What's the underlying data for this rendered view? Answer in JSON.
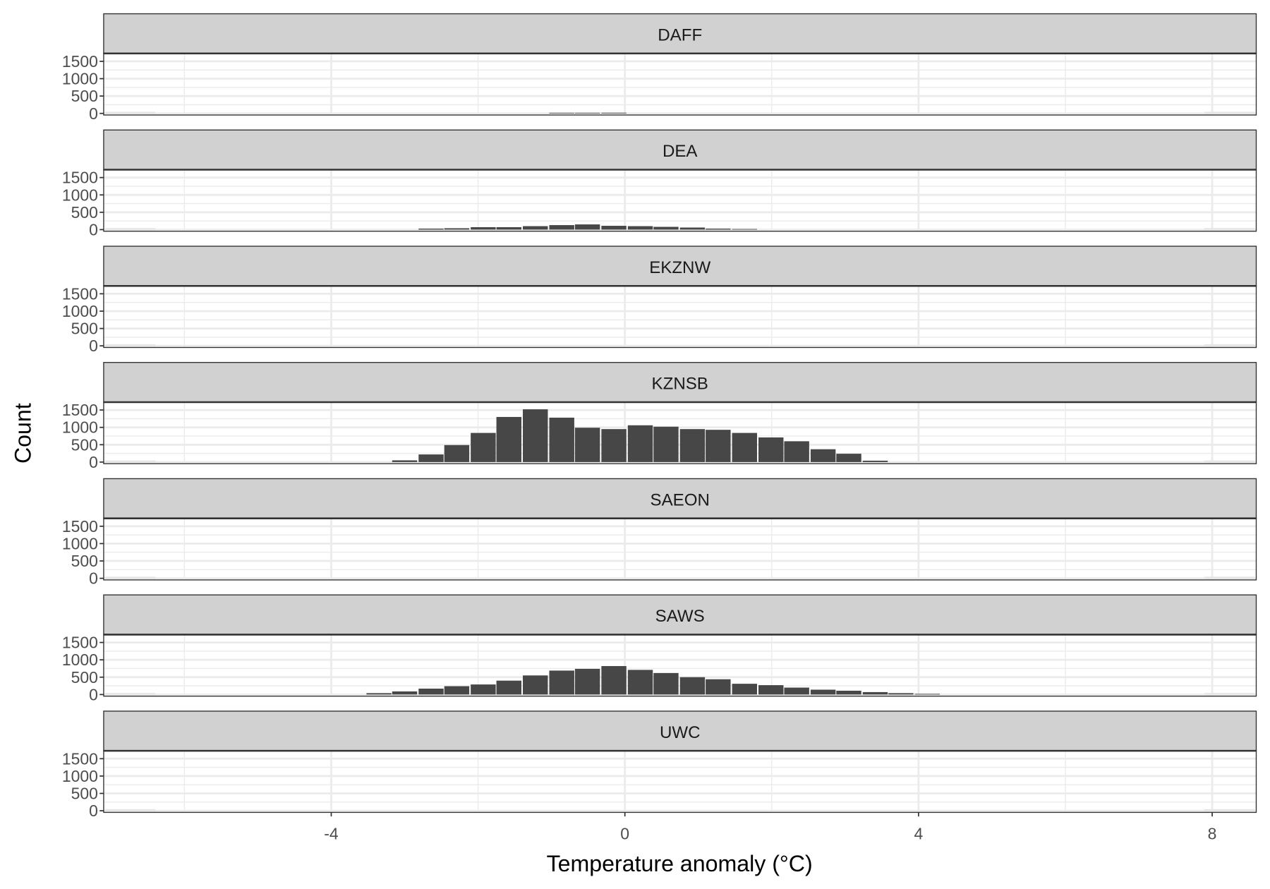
{
  "chart_data": {
    "type": "bar",
    "subtype": "faceted histogram",
    "xlabel": "Temperature anomaly (°C)",
    "ylabel": "Count",
    "xlim": [
      -7.1,
      8.6
    ],
    "ylim": [
      0,
      1680
    ],
    "x_ticks": [
      -4,
      0,
      4,
      8
    ],
    "x_tick_labels": [
      "-4",
      "0",
      "4",
      "8"
    ],
    "y_ticks": [
      0,
      500,
      1000,
      1500
    ],
    "y_tick_labels": [
      "0",
      "500",
      "1000",
      "1500"
    ],
    "grid": true,
    "bin_width": 0.356,
    "bar_color": "#474747",
    "panels": [
      {
        "name": "DAFF",
        "x": [
          -0.86,
          -0.51,
          -0.15
        ],
        "counts": [
          5,
          10,
          20
        ]
      },
      {
        "name": "DEA",
        "x": [
          -2.64,
          -2.29,
          -1.93,
          -1.58,
          -1.22,
          -0.86,
          -0.51,
          -0.15,
          0.21,
          0.56,
          0.92,
          1.27,
          1.63
        ],
        "counts": [
          30,
          40,
          70,
          70,
          100,
          130,
          150,
          110,
          100,
          80,
          60,
          30,
          10
        ]
      },
      {
        "name": "EKZNW",
        "x": [],
        "counts": []
      },
      {
        "name": "KZNSB",
        "x": [
          -3.0,
          -2.64,
          -2.29,
          -1.93,
          -1.58,
          -1.22,
          -0.86,
          -0.51,
          -0.15,
          0.21,
          0.56,
          0.92,
          1.27,
          1.63,
          1.99,
          2.34,
          2.7,
          3.05,
          3.41
        ],
        "counts": [
          50,
          220,
          490,
          840,
          1300,
          1520,
          1280,
          990,
          950,
          1060,
          1020,
          950,
          930,
          840,
          710,
          600,
          370,
          240,
          40
        ]
      },
      {
        "name": "SAEON",
        "x": [],
        "counts": []
      },
      {
        "name": "SAWS",
        "x": [
          -3.35,
          -3.0,
          -2.64,
          -2.29,
          -1.93,
          -1.58,
          -1.22,
          -0.86,
          -0.51,
          -0.15,
          0.21,
          0.56,
          0.92,
          1.27,
          1.63,
          1.99,
          2.34,
          2.7,
          3.05,
          3.41,
          3.76,
          4.12
        ],
        "counts": [
          40,
          90,
          170,
          240,
          290,
          400,
          550,
          690,
          740,
          820,
          710,
          620,
          500,
          440,
          310,
          270,
          200,
          140,
          110,
          70,
          40,
          20
        ]
      },
      {
        "name": "UWC",
        "x": [],
        "counts": []
      }
    ]
  }
}
